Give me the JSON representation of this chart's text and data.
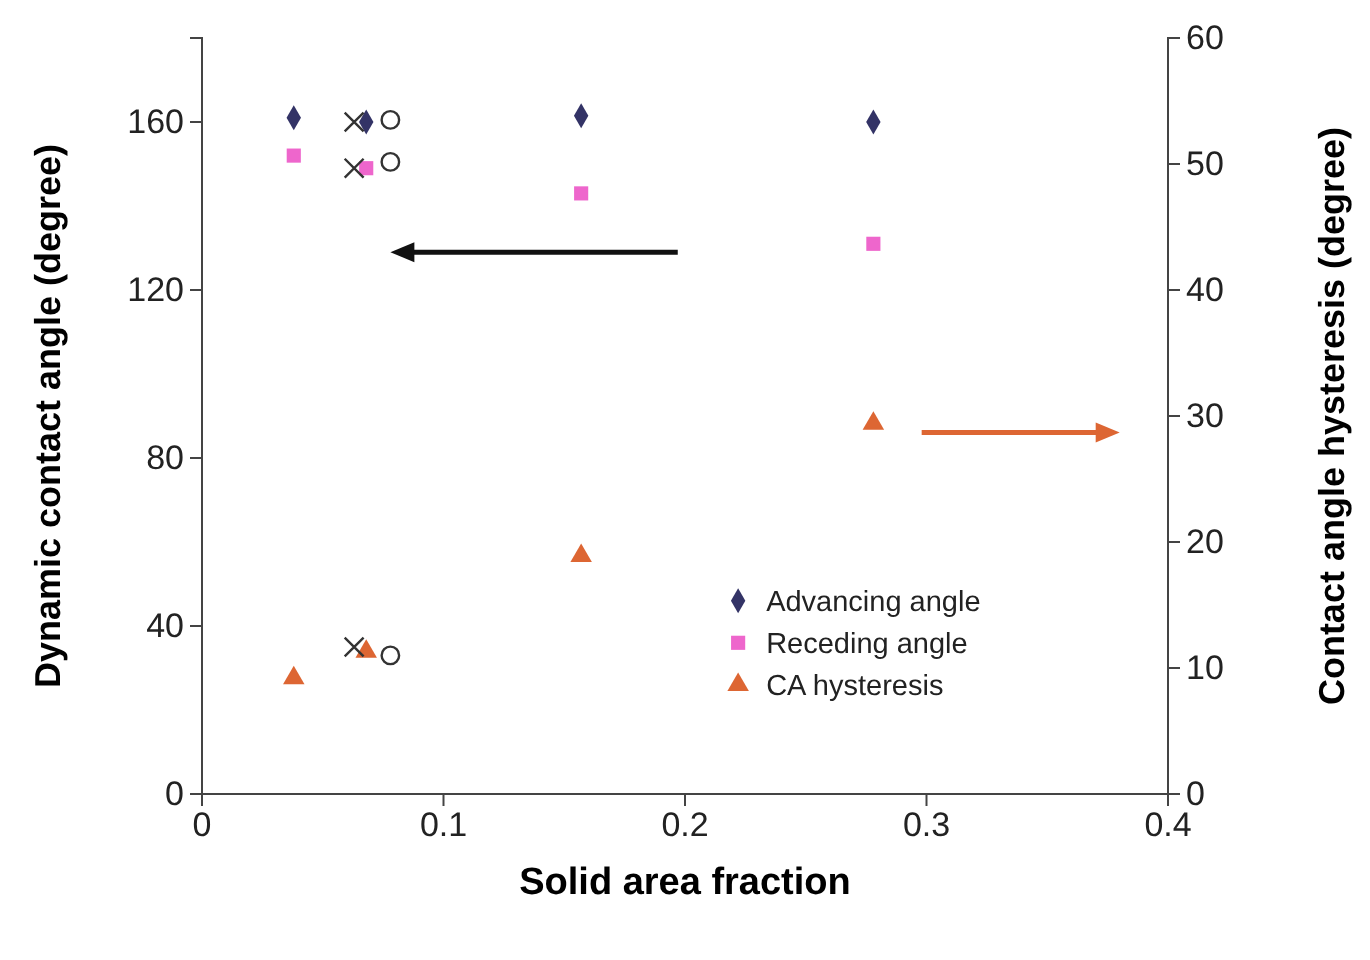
{
  "chart_data": {
    "type": "scatter",
    "xlabel": "Solid area fraction",
    "ylabel": "Dynamic contact angle (degree)",
    "y2label": "Contact angle hysteresis (degree)",
    "xlim": [
      0,
      0.4
    ],
    "xticks": [
      0,
      0.1,
      0.2,
      0.3,
      0.4
    ],
    "ylim": [
      0,
      180
    ],
    "yticks": [
      0,
      40,
      80,
      120,
      160
    ],
    "y2lim": [
      0,
      60
    ],
    "y2ticks": [
      0,
      10,
      20,
      30,
      40,
      50,
      60
    ],
    "legend": "bottom right",
    "grid": false,
    "series": [
      {
        "name": "Advancing angle",
        "color": "#333366",
        "marker": "diamond",
        "x": [
          0.038,
          0.068,
          0.157,
          0.278
        ],
        "values": [
          161,
          160,
          161.5,
          160
        ]
      },
      {
        "name": "Receding angle",
        "color": "#ee66cc",
        "marker": "square",
        "x": [
          0.038,
          0.068,
          0.157,
          0.278
        ],
        "values": [
          152,
          149,
          143,
          131
        ]
      },
      {
        "name": "CA hysteresis",
        "color": "#dd6633",
        "marker": "triangle",
        "axis": "y2",
        "x": [
          0.038,
          0.068,
          0.157,
          0.278
        ],
        "values": [
          9.2,
          11.3,
          18.9,
          29.4
        ]
      },
      {
        "color": "#333333",
        "marker": "cross",
        "x": [
          0.063,
          0.063,
          0.063
        ],
        "values": [
          160,
          149,
          35
        ]
      },
      {
        "color": "#333333",
        "marker": "circle",
        "x": [
          0.078,
          0.078,
          0.078
        ],
        "values": [
          160.5,
          150.5,
          33
        ]
      }
    ]
  }
}
